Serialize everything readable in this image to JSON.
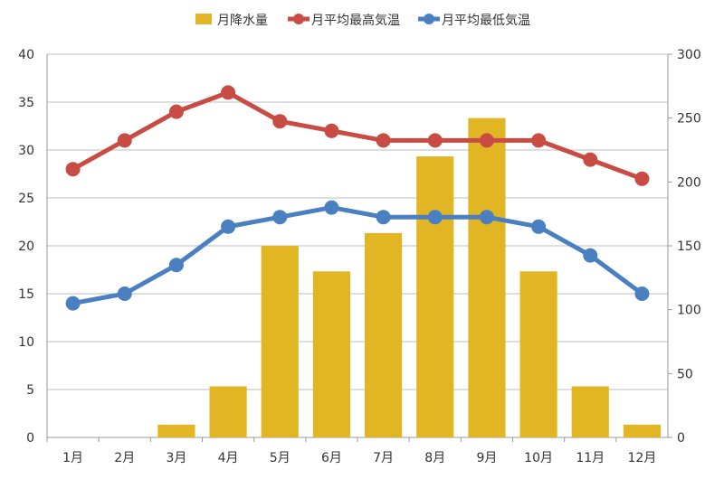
{
  "chart_data": {
    "type": "bar",
    "categories": [
      "1月",
      "2月",
      "3月",
      "4月",
      "5月",
      "6月",
      "7月",
      "8月",
      "9月",
      "10月",
      "11月",
      "12月"
    ],
    "series": [
      {
        "name": "月降水量",
        "type": "bar",
        "axis": "right",
        "color": "#e2b524",
        "values": [
          0,
          0,
          10,
          40,
          150,
          130,
          160,
          220,
          250,
          130,
          40,
          10
        ]
      },
      {
        "name": "月平均最高気温",
        "type": "line",
        "axis": "left",
        "color": "#c84c44",
        "values": [
          28,
          31,
          34,
          36,
          33,
          32,
          31,
          31,
          31,
          31,
          29,
          27
        ]
      },
      {
        "name": "月平均最低気温",
        "type": "line",
        "axis": "left",
        "color": "#4a7fc1",
        "values": [
          14,
          15,
          18,
          22,
          23,
          24,
          23,
          23,
          23,
          22,
          19,
          15
        ]
      }
    ],
    "y_left": {
      "min": 0,
      "max": 40,
      "step": 5,
      "ticks": [
        "0",
        "5",
        "10",
        "15",
        "20",
        "25",
        "30",
        "35",
        "40"
      ]
    },
    "y_right": {
      "min": 0,
      "max": 300,
      "step": 50,
      "ticks": [
        "0",
        "50",
        "100",
        "150",
        "200",
        "250",
        "300"
      ]
    },
    "grid": true,
    "legend_position": "top"
  }
}
